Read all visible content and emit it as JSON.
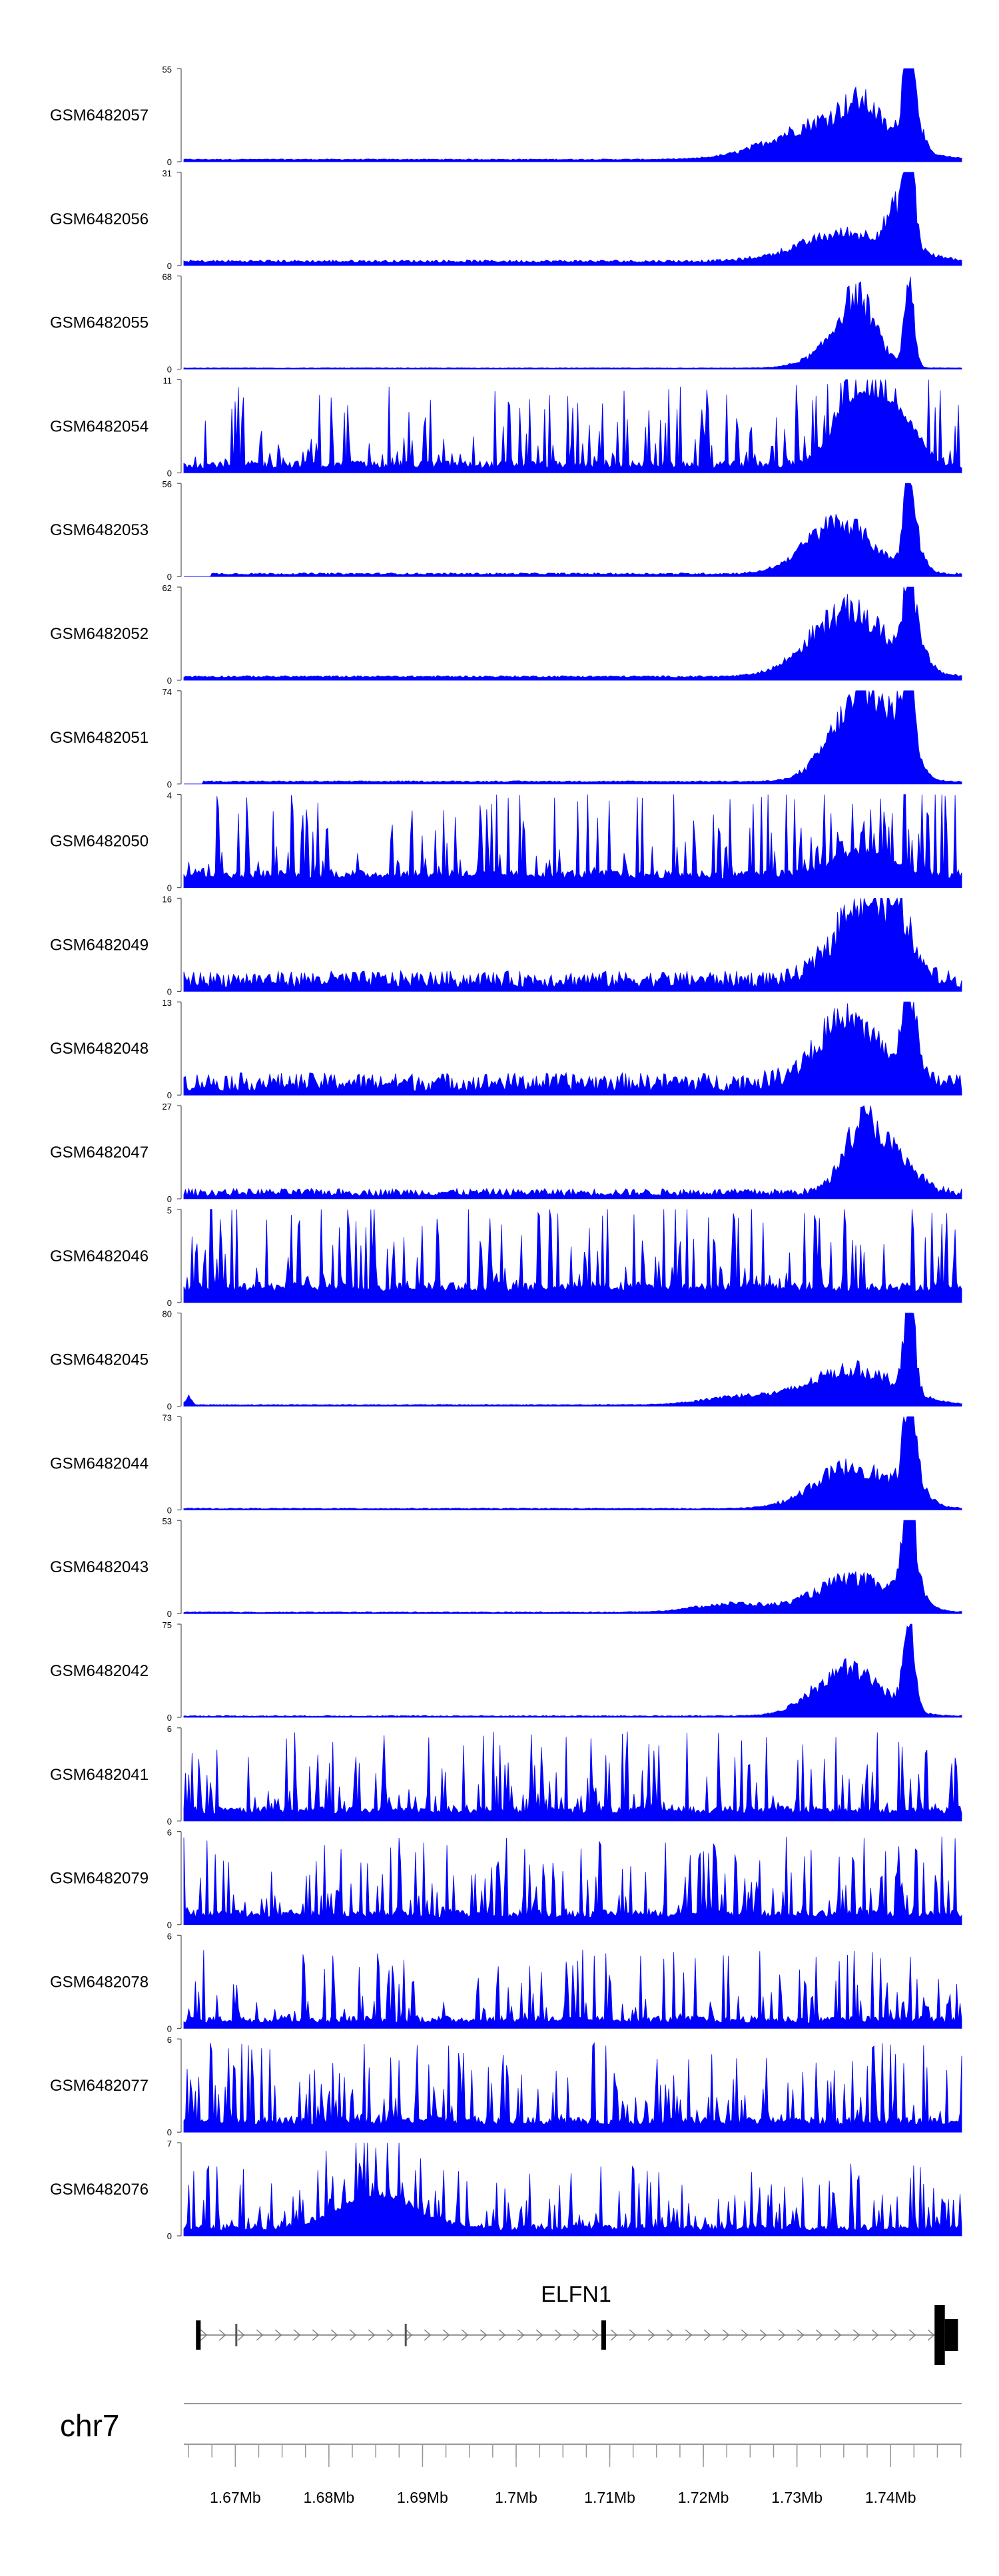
{
  "chart_data": {
    "type": "area",
    "title": "",
    "xlabel": "",
    "ylabel": "",
    "fill_color": "#0000ff",
    "x_range": [
      1.6645,
      1.7476
    ],
    "x_unit": "Mb",
    "chromosome": "chr7",
    "x_ticks": [
      {
        "value": 1.67,
        "label": "1.67Mb"
      },
      {
        "value": 1.68,
        "label": "1.68Mb"
      },
      {
        "value": 1.69,
        "label": "1.69Mb"
      },
      {
        "value": 1.7,
        "label": "1.7Mb"
      },
      {
        "value": 1.71,
        "label": "1.71Mb"
      },
      {
        "value": 1.72,
        "label": "1.72Mb"
      },
      {
        "value": 1.73,
        "label": "1.73Mb"
      },
      {
        "value": 1.74,
        "label": "1.74Mb"
      }
    ],
    "tracks": [
      {
        "name": "GSM6482057",
        "ymax": 55,
        "ymin": 0,
        "profile": "peaks",
        "baseline": 0.02,
        "noise": 0.01,
        "noise_start": 1.6645,
        "features": [
          [
            1.7335,
            0.0055,
            0.4
          ],
          [
            1.737,
            0.002,
            0.3
          ],
          [
            1.742,
            0.0005,
            1.0
          ],
          [
            1.7422,
            0.0009,
            0.55
          ]
        ]
      },
      {
        "name": "GSM6482056",
        "ymax": 31,
        "ymin": 0,
        "profile": "peaks",
        "baseline": 0.03,
        "noise": 0.03,
        "noise_start": 1.6645,
        "features": [
          [
            1.7355,
            0.005,
            0.3
          ],
          [
            1.741,
            0.0012,
            0.45
          ],
          [
            1.742,
            0.0005,
            1.0
          ]
        ]
      },
      {
        "name": "GSM6482055",
        "ymax": 68,
        "ymin": 0,
        "profile": "peaks",
        "baseline": 0.01,
        "noise": 0.005,
        "noise_start": 1.6645,
        "features": [
          [
            1.7365,
            0.0018,
            0.55
          ],
          [
            1.735,
            0.003,
            0.25
          ],
          [
            1.742,
            0.0005,
            0.95
          ]
        ]
      },
      {
        "name": "GSM6482054",
        "ymax": 11,
        "ymin": 0,
        "profile": "noisy",
        "baseline": 0.05,
        "noise": 0.55,
        "noise_start": 1.6645,
        "features": [
          [
            1.7365,
            0.0025,
            0.7
          ],
          [
            1.741,
            0.002,
            0.45
          ]
        ]
      },
      {
        "name": "GSM6482053",
        "ymax": 56,
        "ymin": 0,
        "profile": "peaks",
        "baseline": 0.02,
        "noise": 0.02,
        "noise_start": 1.6675,
        "features": [
          [
            1.7345,
            0.0035,
            0.55
          ],
          [
            1.742,
            0.0005,
            1.0
          ],
          [
            1.7425,
            0.001,
            0.3
          ]
        ]
      },
      {
        "name": "GSM6482052",
        "ymax": 62,
        "ymin": 0,
        "profile": "peaks",
        "baseline": 0.03,
        "noise": 0.02,
        "noise_start": 1.6645,
        "features": [
          [
            1.7355,
            0.004,
            0.7
          ],
          [
            1.742,
            0.0005,
            0.95
          ],
          [
            1.7425,
            0.0012,
            0.3
          ]
        ]
      },
      {
        "name": "GSM6482051",
        "ymax": 74,
        "ymin": 0,
        "profile": "peaks",
        "baseline": 0.02,
        "noise": 0.015,
        "noise_start": 1.6665,
        "features": [
          [
            1.7365,
            0.003,
            0.8
          ],
          [
            1.7395,
            0.002,
            0.3
          ],
          [
            1.742,
            0.0005,
            1.0
          ],
          [
            1.7418,
            0.001,
            0.35
          ]
        ]
      },
      {
        "name": "GSM6482050",
        "ymax": 4,
        "ymin": 0,
        "profile": "noisy",
        "baseline": 0.1,
        "noise": 0.6,
        "noise_start": 1.6645,
        "features": [
          [
            1.737,
            0.003,
            0.25
          ]
        ]
      },
      {
        "name": "GSM6482049",
        "ymax": 16,
        "ymin": 0,
        "profile": "peaks",
        "baseline": 0.04,
        "noise": 0.18,
        "noise_start": 1.6645,
        "features": [
          [
            1.737,
            0.003,
            0.85
          ],
          [
            1.741,
            0.0015,
            0.4
          ]
        ]
      },
      {
        "name": "GSM6482048",
        "ymax": 13,
        "ymin": 0,
        "profile": "peaks",
        "baseline": 0.04,
        "noise": 0.2,
        "noise_start": 1.6645,
        "features": [
          [
            1.7355,
            0.0035,
            0.65
          ],
          [
            1.742,
            0.0007,
            1.0
          ]
        ]
      },
      {
        "name": "GSM6482047",
        "ymax": 27,
        "ymin": 0,
        "profile": "peaks",
        "baseline": 0.03,
        "noise": 0.08,
        "noise_start": 1.6645,
        "features": [
          [
            1.737,
            0.002,
            0.75
          ],
          [
            1.741,
            0.002,
            0.3
          ]
        ]
      },
      {
        "name": "GSM6482046",
        "ymax": 5,
        "ymin": 0,
        "profile": "noisy",
        "baseline": 0.12,
        "noise": 0.65,
        "noise_start": 1.6645,
        "features": []
      },
      {
        "name": "GSM6482045",
        "ymax": 80,
        "ymin": 0,
        "profile": "peaks",
        "baseline": 0.01,
        "noise": 0.01,
        "noise_start": 1.6645,
        "features": [
          [
            1.665,
            0.0003,
            0.1
          ],
          [
            1.724,
            0.004,
            0.09
          ],
          [
            1.736,
            0.0045,
            0.38
          ],
          [
            1.742,
            0.0006,
            1.0
          ]
        ]
      },
      {
        "name": "GSM6482044",
        "ymax": 73,
        "ymin": 0,
        "profile": "peaks",
        "baseline": 0.01,
        "noise": 0.01,
        "noise_start": 1.6645,
        "features": [
          [
            1.736,
            0.004,
            0.45
          ],
          [
            1.742,
            0.0006,
            0.95
          ],
          [
            1.7425,
            0.0012,
            0.25
          ]
        ]
      },
      {
        "name": "GSM6482043",
        "ymax": 53,
        "ymin": 0,
        "profile": "peaks",
        "baseline": 0.01,
        "noise": 0.01,
        "noise_start": 1.6645,
        "features": [
          [
            1.723,
            0.004,
            0.09
          ],
          [
            1.736,
            0.004,
            0.36
          ],
          [
            1.742,
            0.0006,
            0.95
          ],
          [
            1.7422,
            0.0013,
            0.25
          ]
        ]
      },
      {
        "name": "GSM6482042",
        "ymax": 75,
        "ymin": 0,
        "profile": "peaks",
        "baseline": 0.01,
        "noise": 0.01,
        "noise_start": 1.6645,
        "features": [
          [
            1.7355,
            0.0035,
            0.5
          ],
          [
            1.742,
            0.0006,
            0.95
          ]
        ]
      },
      {
        "name": "GSM6482041",
        "ymax": 6,
        "ymin": 0,
        "profile": "noisy",
        "baseline": 0.08,
        "noise": 0.55,
        "noise_start": 1.6645,
        "features": []
      },
      {
        "name": "GSM6482079",
        "ymax": 6,
        "ymin": 0,
        "profile": "noisy",
        "baseline": 0.08,
        "noise": 0.55,
        "noise_start": 1.6645,
        "features": []
      },
      {
        "name": "GSM6482078",
        "ymax": 6,
        "ymin": 0,
        "profile": "noisy",
        "baseline": 0.06,
        "noise": 0.5,
        "noise_start": 1.6645,
        "features": []
      },
      {
        "name": "GSM6482077",
        "ymax": 6,
        "ymin": 0,
        "profile": "noisy",
        "baseline": 0.08,
        "noise": 0.55,
        "noise_start": 1.6645,
        "features": []
      },
      {
        "name": "GSM6482076",
        "ymax": 7,
        "ymin": 0,
        "profile": "noisy",
        "baseline": 0.06,
        "noise": 0.45,
        "noise_start": 1.6645,
        "features": [
          [
            1.685,
            0.004,
            0.35
          ]
        ]
      }
    ],
    "gene": {
      "name": "ELFN1",
      "start": 1.6658,
      "end": 1.7472,
      "strand": "+",
      "exons": [
        [
          1.6658,
          1.6663
        ],
        [
          1.67,
          1.6702
        ],
        [
          1.6881,
          1.6883
        ],
        [
          1.7091,
          1.7096
        ],
        [
          1.7447,
          1.7472
        ]
      ],
      "exon_thick_start": 1.7458
    }
  }
}
